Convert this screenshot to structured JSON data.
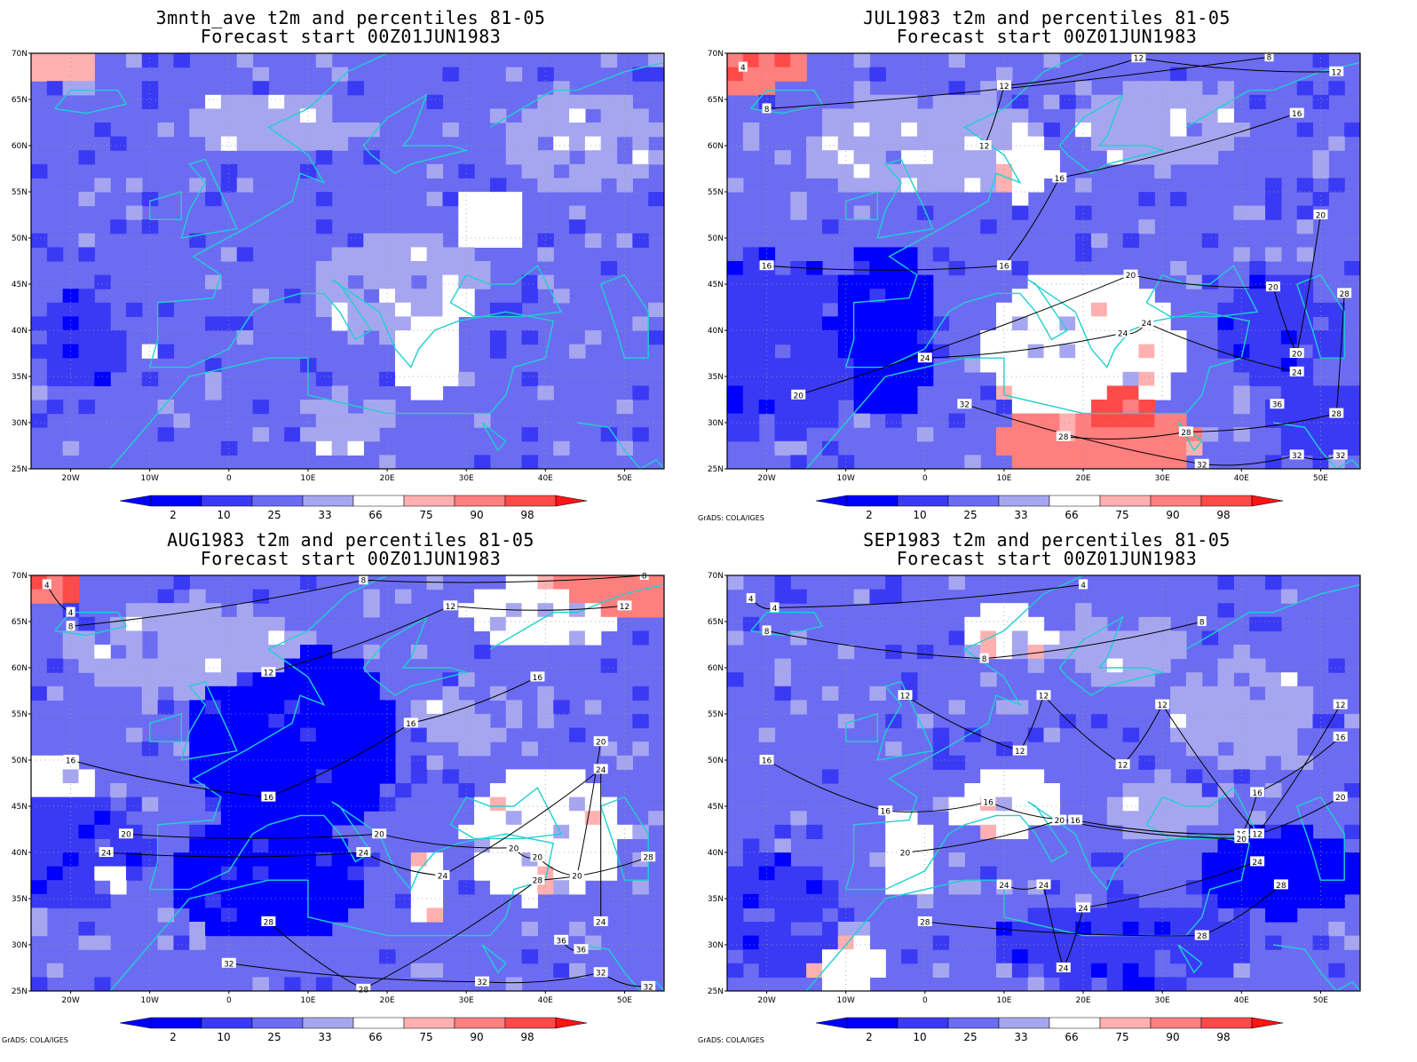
{
  "credit_text": "GrADS: COLA/IGES",
  "colorbar": {
    "labels": [
      "2",
      "10",
      "25",
      "33",
      "66",
      "75",
      "90",
      "98"
    ],
    "colors": [
      "#0000ff",
      "#3a3af5",
      "#6c6cf2",
      "#a6a6f0",
      "#ffffff",
      "#ffb0b0",
      "#ff7f7f",
      "#ff4a4a",
      "#ff1414"
    ]
  },
  "axes": {
    "y_ticks": [
      "70N",
      "65N",
      "60N",
      "55N",
      "50N",
      "45N",
      "40N",
      "35N",
      "30N",
      "25N"
    ],
    "x_ticks": [
      "20W",
      "10W",
      "0",
      "10E",
      "20E",
      "30E",
      "40E",
      "50E"
    ]
  },
  "chart_data": [
    {
      "type": "heatmap",
      "title": "3mnth_ave t2m and percentiles 81-05",
      "subtitle": "Forecast start 00Z01JUN1983",
      "xlim": [
        -25,
        55
      ],
      "ylim": [
        25,
        70
      ],
      "contours": [],
      "show_credit": false
    },
    {
      "type": "heatmap",
      "title": "JUL1983 t2m and percentiles 81-05",
      "subtitle": "Forecast start 00Z01JUN1983",
      "xlim": [
        -25,
        55
      ],
      "ylim": [
        25,
        70
      ],
      "contour_labels": [
        {
          "lon": -23,
          "lat": 68.5,
          "text": "4"
        },
        {
          "lon": -20,
          "lat": 64,
          "text": "8"
        },
        {
          "lon": 27,
          "lat": 69.5,
          "text": "12"
        },
        {
          "lon": 43.5,
          "lat": 69.6,
          "text": "8"
        },
        {
          "lon": 10,
          "lat": 66.5,
          "text": "12"
        },
        {
          "lon": 52,
          "lat": 68,
          "text": "12"
        },
        {
          "lon": 7.5,
          "lat": 60,
          "text": "12"
        },
        {
          "lon": 47,
          "lat": 63.5,
          "text": "16"
        },
        {
          "lon": 17,
          "lat": 56.5,
          "text": "16"
        },
        {
          "lon": 50,
          "lat": 52.5,
          "text": "20"
        },
        {
          "lon": -20,
          "lat": 47,
          "text": "16"
        },
        {
          "lon": 10,
          "lat": 47,
          "text": "16"
        },
        {
          "lon": 26,
          "lat": 46,
          "text": "20"
        },
        {
          "lon": 44,
          "lat": 44.7,
          "text": "20"
        },
        {
          "lon": 53,
          "lat": 44,
          "text": "28"
        },
        {
          "lon": 28,
          "lat": 40.8,
          "text": "24"
        },
        {
          "lon": 25,
          "lat": 39.7,
          "text": "24"
        },
        {
          "lon": 0,
          "lat": 37,
          "text": "24"
        },
        {
          "lon": 47,
          "lat": 37.5,
          "text": "20"
        },
        {
          "lon": 47,
          "lat": 35.5,
          "text": "24"
        },
        {
          "lon": -16,
          "lat": 33,
          "text": "20"
        },
        {
          "lon": 5,
          "lat": 32,
          "text": "32"
        },
        {
          "lon": 44.5,
          "lat": 32,
          "text": "36"
        },
        {
          "lon": 52,
          "lat": 31,
          "text": "28"
        },
        {
          "lon": 33,
          "lat": 29,
          "text": "28"
        },
        {
          "lon": 17.5,
          "lat": 28.5,
          "text": "28"
        },
        {
          "lon": 47,
          "lat": 26.5,
          "text": "32"
        },
        {
          "lon": 52.5,
          "lat": 26.5,
          "text": "32"
        },
        {
          "lon": 35,
          "lat": 25.5,
          "text": "32"
        }
      ],
      "show_credit": true
    },
    {
      "type": "heatmap",
      "title": "AUG1983 t2m and percentiles 81-05",
      "subtitle": "Forecast start 00Z01JUN1983",
      "xlim": [
        -25,
        55
      ],
      "ylim": [
        25,
        70
      ],
      "contour_labels": [
        {
          "lon": -23,
          "lat": 69,
          "text": "4"
        },
        {
          "lon": -20,
          "lat": 66,
          "text": "4"
        },
        {
          "lon": -20,
          "lat": 64.5,
          "text": "8"
        },
        {
          "lon": 17,
          "lat": 69.5,
          "text": "8"
        },
        {
          "lon": 52.5,
          "lat": 70,
          "text": "8"
        },
        {
          "lon": 28,
          "lat": 66.7,
          "text": "12"
        },
        {
          "lon": 50,
          "lat": 66.7,
          "text": "12"
        },
        {
          "lon": 5,
          "lat": 59.5,
          "text": "12"
        },
        {
          "lon": 39,
          "lat": 59,
          "text": "16"
        },
        {
          "lon": 23,
          "lat": 54,
          "text": "16"
        },
        {
          "lon": 47,
          "lat": 52,
          "text": "20"
        },
        {
          "lon": -20,
          "lat": 50,
          "text": "16"
        },
        {
          "lon": 47,
          "lat": 49,
          "text": "24"
        },
        {
          "lon": 5,
          "lat": 46,
          "text": "16"
        },
        {
          "lon": -13,
          "lat": 42,
          "text": "20"
        },
        {
          "lon": 19,
          "lat": 42,
          "text": "20"
        },
        {
          "lon": -15.5,
          "lat": 40,
          "text": "24"
        },
        {
          "lon": 17,
          "lat": 40,
          "text": "24"
        },
        {
          "lon": 36,
          "lat": 40.5,
          "text": "20"
        },
        {
          "lon": 39,
          "lat": 39.5,
          "text": "20"
        },
        {
          "lon": 53,
          "lat": 39.5,
          "text": "28"
        },
        {
          "lon": 27,
          "lat": 37.5,
          "text": "24"
        },
        {
          "lon": 39,
          "lat": 37,
          "text": "28"
        },
        {
          "lon": 44,
          "lat": 37.5,
          "text": "20"
        },
        {
          "lon": 5,
          "lat": 32.5,
          "text": "28"
        },
        {
          "lon": 47,
          "lat": 32.5,
          "text": "24"
        },
        {
          "lon": 42,
          "lat": 30.5,
          "text": "36"
        },
        {
          "lon": 44.5,
          "lat": 29.5,
          "text": "36"
        },
        {
          "lon": 0,
          "lat": 28,
          "text": "32"
        },
        {
          "lon": 47,
          "lat": 27,
          "text": "32"
        },
        {
          "lon": 32,
          "lat": 26,
          "text": "32"
        },
        {
          "lon": 17,
          "lat": 25.2,
          "text": "28"
        },
        {
          "lon": 53,
          "lat": 25.5,
          "text": "32"
        }
      ],
      "show_credit": true
    },
    {
      "type": "heatmap",
      "title": "SEP1983 t2m and percentiles 81-05",
      "subtitle": "Forecast start 00Z01JUN1983",
      "xlim": [
        -25,
        55
      ],
      "ylim": [
        25,
        70
      ],
      "contour_labels": [
        {
          "lon": -22,
          "lat": 67.5,
          "text": "4"
        },
        {
          "lon": -19,
          "lat": 66.5,
          "text": "4"
        },
        {
          "lon": 20,
          "lat": 69,
          "text": "4"
        },
        {
          "lon": -20,
          "lat": 64,
          "text": "8"
        },
        {
          "lon": 35,
          "lat": 65,
          "text": "8"
        },
        {
          "lon": 7.5,
          "lat": 61,
          "text": "8"
        },
        {
          "lon": -2.5,
          "lat": 57,
          "text": "12"
        },
        {
          "lon": 15,
          "lat": 57,
          "text": "12"
        },
        {
          "lon": 30,
          "lat": 56,
          "text": "12"
        },
        {
          "lon": 52.5,
          "lat": 56,
          "text": "12"
        },
        {
          "lon": -20,
          "lat": 50,
          "text": "16"
        },
        {
          "lon": 12,
          "lat": 51,
          "text": "12"
        },
        {
          "lon": 52.5,
          "lat": 52.5,
          "text": "16"
        },
        {
          "lon": 25,
          "lat": 49.5,
          "text": "12"
        },
        {
          "lon": 42,
          "lat": 46.5,
          "text": "16"
        },
        {
          "lon": 52.5,
          "lat": 46,
          "text": "20"
        },
        {
          "lon": 8,
          "lat": 45.5,
          "text": "16"
        },
        {
          "lon": -5,
          "lat": 44.5,
          "text": "16"
        },
        {
          "lon": 17,
          "lat": 43.5,
          "text": "20"
        },
        {
          "lon": 19,
          "lat": 43.5,
          "text": "16"
        },
        {
          "lon": 40,
          "lat": 42,
          "text": "16"
        },
        {
          "lon": 42,
          "lat": 42,
          "text": "12"
        },
        {
          "lon": 40,
          "lat": 41.5,
          "text": "20"
        },
        {
          "lon": -2.5,
          "lat": 40,
          "text": "20"
        },
        {
          "lon": 42,
          "lat": 39,
          "text": "24"
        },
        {
          "lon": 10,
          "lat": 36.5,
          "text": "24"
        },
        {
          "lon": 15,
          "lat": 36.5,
          "text": "24"
        },
        {
          "lon": 45,
          "lat": 36.5,
          "text": "28"
        },
        {
          "lon": 20,
          "lat": 34,
          "text": "24"
        },
        {
          "lon": 0,
          "lat": 32.5,
          "text": "28"
        },
        {
          "lon": 35,
          "lat": 31,
          "text": "28"
        },
        {
          "lon": 17.5,
          "lat": 27.5,
          "text": "24"
        }
      ],
      "show_credit": true
    }
  ]
}
